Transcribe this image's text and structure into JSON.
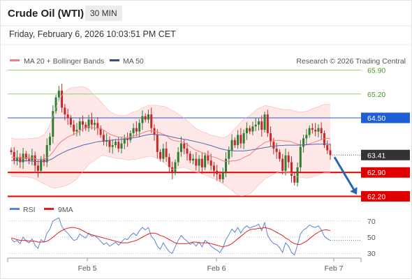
{
  "header": {
    "title": "Crude Oil (WTI)",
    "timeframe": "30 MIN",
    "datetime": "Friday, February 6, 2026 10:03:51 PM CET"
  },
  "legend": {
    "bollinger_label": "MA 20 + Bollinger Bands",
    "ma50_label": "MA 50",
    "credit": "Research © 2026 Trading Central"
  },
  "rsi_legend": {
    "rsi_label": "RSI",
    "ma9_label": "9MA"
  },
  "colors": {
    "up": "#2e7d32",
    "down": "#c62828",
    "bollinger": "#f08080",
    "band_fill": "#fde3e3",
    "ma50": "#5068b0",
    "resistance_green": "#9acd6a",
    "pivot_blue": "#1f5fd6",
    "support_red": "#e00000",
    "rsi": "#5a84d6",
    "rsi_ma": "#e02020",
    "arrow": "#2a65b0"
  },
  "chart_data": [
    {
      "type": "candlestick",
      "title": "Crude Oil (WTI)",
      "ylim": [
        61.8,
        66.3
      ],
      "x_ticks": [
        "Feb 5",
        "Feb 6",
        "Feb 7"
      ],
      "levels": [
        {
          "value": 65.9,
          "label": "65.90",
          "kind": "resistance"
        },
        {
          "value": 65.2,
          "label": "65.20",
          "kind": "resistance"
        },
        {
          "value": 64.5,
          "label": "64.50",
          "kind": "pivot"
        },
        {
          "value": 62.9,
          "label": "62.90",
          "kind": "support"
        },
        {
          "value": 62.2,
          "label": "62.20",
          "kind": "support"
        }
      ],
      "last_price": {
        "value": 63.41,
        "label": "63.41"
      },
      "forecast": {
        "from": 63.35,
        "to": 62.25
      },
      "closes": [
        63.5,
        63.25,
        63.35,
        63.2,
        63.45,
        63.3,
        63.25,
        63.4,
        63.1,
        62.95,
        63.3,
        63.2,
        63.7,
        63.95,
        64.7,
        65.1,
        65.3,
        64.8,
        64.6,
        64.5,
        64.3,
        64.1,
        64.15,
        64.4,
        64.3,
        64.2,
        64.45,
        64.3,
        64.35,
        64.2,
        64.0,
        63.8,
        63.85,
        63.65,
        63.7,
        63.8,
        63.6,
        63.75,
        63.9,
        63.85,
        64.05,
        64.2,
        64.1,
        64.35,
        64.55,
        64.45,
        64.6,
        64.2,
        64.0,
        63.5,
        63.3,
        63.6,
        63.35,
        63.05,
        62.9,
        63.2,
        63.5,
        63.75,
        63.6,
        63.45,
        63.25,
        63.3,
        63.1,
        63.3,
        63.05,
        63.4,
        63.25,
        63.1,
        62.95,
        62.85,
        62.7,
        62.9,
        63.3,
        63.55,
        63.85,
        63.7,
        64.0,
        63.75,
        64.05,
        64.2,
        64.1,
        64.25,
        64.3,
        64.4,
        64.15,
        64.6,
        64.05,
        63.8,
        63.6,
        63.5,
        63.3,
        62.95,
        63.4,
        63.2,
        62.8,
        62.6,
        63.05,
        63.65,
        63.9,
        64.0,
        64.2,
        64.15,
        64.1,
        64.2,
        64.05,
        63.7,
        63.55,
        63.41
      ],
      "ma20": [
        63.35,
        63.34,
        63.33,
        63.33,
        63.32,
        63.33,
        63.32,
        63.32,
        63.31,
        63.28,
        63.29,
        63.28,
        63.33,
        63.4,
        63.5,
        63.62,
        63.74,
        63.82,
        63.88,
        63.94,
        63.98,
        64.02,
        64.05,
        64.12,
        64.17,
        64.21,
        64.24,
        64.22,
        64.2,
        64.2,
        64.18,
        64.14,
        64.08,
        64.03,
        63.99,
        63.96,
        63.94,
        63.93,
        63.93,
        63.92,
        63.95,
        63.98,
        63.99,
        64.02,
        64.06,
        64.09,
        64.12,
        64.12,
        64.11,
        64.09,
        64.05,
        64.02,
        63.98,
        63.9,
        63.85,
        63.83,
        63.81,
        63.8,
        63.77,
        63.72,
        63.66,
        63.6,
        63.55,
        63.52,
        63.48,
        63.45,
        63.41,
        63.37,
        63.35,
        63.32,
        63.28,
        63.24,
        63.22,
        63.22,
        63.24,
        63.24,
        63.26,
        63.29,
        63.34,
        63.38,
        63.42,
        63.5,
        63.58,
        63.66,
        63.71,
        63.78,
        63.8,
        63.82,
        63.83,
        63.84,
        63.84,
        63.83,
        63.82,
        63.82,
        63.8,
        63.76,
        63.73,
        63.71,
        63.71,
        63.71,
        63.74,
        63.77,
        63.8,
        63.83,
        63.87,
        63.89,
        63.9,
        63.89
      ],
      "ma50": [
        63.25,
        63.25,
        63.24,
        63.24,
        63.24,
        63.24,
        63.24,
        63.23,
        63.23,
        63.22,
        63.22,
        63.22,
        63.24,
        63.27,
        63.31,
        63.37,
        63.42,
        63.47,
        63.51,
        63.55,
        63.58,
        63.61,
        63.64,
        63.67,
        63.7,
        63.72,
        63.74,
        63.76,
        63.78,
        63.8,
        63.81,
        63.82,
        63.83,
        63.84,
        63.85,
        63.86,
        63.86,
        63.87,
        63.88,
        63.89,
        63.9,
        63.92,
        63.93,
        63.95,
        63.97,
        63.99,
        64.01,
        64.02,
        64.02,
        64.01,
        64.0,
        63.99,
        63.98,
        63.96,
        63.94,
        63.92,
        63.9,
        63.89,
        63.87,
        63.86,
        63.84,
        63.82,
        63.8,
        63.78,
        63.76,
        63.74,
        63.71,
        63.69,
        63.66,
        63.63,
        63.6,
        63.58,
        63.56,
        63.55,
        63.54,
        63.53,
        63.53,
        63.53,
        63.53,
        63.54,
        63.55,
        63.57,
        63.58,
        63.6,
        63.61,
        63.63,
        63.64,
        63.66,
        63.67,
        63.68,
        63.69,
        63.69,
        63.7,
        63.7,
        63.7,
        63.7,
        63.7,
        63.7,
        63.71,
        63.71,
        63.72,
        63.72,
        63.73,
        63.73,
        63.73,
        63.73,
        63.73,
        63.72
      ],
      "band_width": [
        0.55,
        0.55,
        0.55,
        0.56,
        0.56,
        0.56,
        0.57,
        0.58,
        0.6,
        0.63,
        0.67,
        0.72,
        0.8,
        0.92,
        1.05,
        1.18,
        1.28,
        1.34,
        1.38,
        1.4,
        1.4,
        1.38,
        1.35,
        1.3,
        1.25,
        1.18,
        1.1,
        1.02,
        0.95,
        0.88,
        0.8,
        0.74,
        0.7,
        0.67,
        0.65,
        0.64,
        0.63,
        0.63,
        0.64,
        0.66,
        0.68,
        0.7,
        0.7,
        0.71,
        0.73,
        0.74,
        0.75,
        0.75,
        0.76,
        0.78,
        0.8,
        0.82,
        0.84,
        0.86,
        0.86,
        0.84,
        0.8,
        0.76,
        0.72,
        0.7,
        0.68,
        0.66,
        0.64,
        0.63,
        0.62,
        0.62,
        0.62,
        0.62,
        0.63,
        0.64,
        0.66,
        0.68,
        0.72,
        0.78,
        0.86,
        0.94,
        1.02,
        1.08,
        1.12,
        1.14,
        1.15,
        1.15,
        1.14,
        1.12,
        1.1,
        1.08,
        1.05,
        1.02,
        0.98,
        0.95,
        0.93,
        0.92,
        0.92,
        0.92,
        0.93,
        0.94,
        0.95,
        0.96,
        0.97,
        0.98,
        0.99,
        1.0,
        1.0,
        1.0,
        1.0,
        1.0,
        1.0,
        1.0
      ]
    },
    {
      "type": "line",
      "title": "RSI",
      "ylim": [
        25,
        75
      ],
      "y_ticks": [
        70,
        50,
        30
      ],
      "series": [
        {
          "name": "RSI",
          "values": [
            48,
            44,
            46,
            42,
            50,
            45,
            43,
            48,
            40,
            36,
            47,
            44,
            55,
            60,
            70,
            72,
            74,
            63,
            58,
            55,
            50,
            46,
            47,
            54,
            51,
            49,
            55,
            51,
            52,
            49,
            45,
            41,
            43,
            39,
            41,
            44,
            40,
            44,
            48,
            47,
            52,
            55,
            52,
            58,
            62,
            59,
            62,
            51,
            47,
            39,
            35,
            43,
            37,
            32,
            30,
            38,
            46,
            52,
            48,
            45,
            41,
            43,
            39,
            44,
            38,
            46,
            43,
            39,
            36,
            34,
            31,
            37,
            47,
            53,
            60,
            56,
            62,
            55,
            61,
            64,
            61,
            63,
            64,
            66,
            58,
            68,
            52,
            46,
            42,
            41,
            37,
            31,
            43,
            39,
            31,
            28,
            40,
            54,
            59,
            61,
            65,
            63,
            62,
            64,
            59,
            51,
            48,
            46
          ]
        },
        {
          "name": "9MA",
          "values": [
            49,
            48,
            47,
            46,
            46,
            46,
            45,
            45,
            45,
            44,
            44,
            44,
            45,
            47,
            50,
            53,
            56,
            58,
            60,
            61,
            62,
            62,
            61,
            60,
            58,
            56,
            54,
            53,
            52,
            51,
            50,
            49,
            48,
            47,
            46,
            45,
            44,
            43,
            43,
            43,
            44,
            45,
            46,
            48,
            50,
            52,
            54,
            55,
            55,
            54,
            52,
            51,
            49,
            47,
            45,
            43,
            42,
            42,
            42,
            42,
            43,
            44,
            44,
            43,
            43,
            43,
            43,
            42,
            41,
            40,
            39,
            38,
            39,
            40,
            42,
            45,
            48,
            51,
            54,
            57,
            59,
            60,
            60,
            61,
            61,
            62,
            61,
            60,
            58,
            56,
            54,
            52,
            49,
            47,
            44,
            42,
            41,
            41,
            43,
            45,
            48,
            51,
            54,
            56,
            58,
            59,
            59,
            58
          ]
        }
      ]
    }
  ]
}
